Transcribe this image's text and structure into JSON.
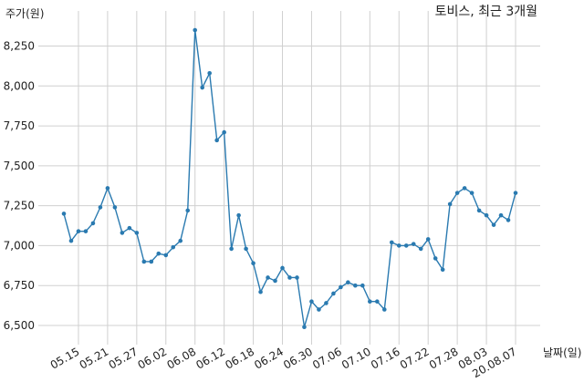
{
  "chart_data": {
    "type": "line",
    "title": "토비스, 최근 3개월",
    "xlabel": "날짜(일)",
    "ylabel": "주가(원)",
    "ylim": [
      6380,
      8470
    ],
    "yticks": [
      6500,
      6750,
      7000,
      7250,
      7500,
      7750,
      8000,
      8250
    ],
    "ytick_labels": [
      "6,500",
      "6,750",
      "7,000",
      "7,250",
      "7,500",
      "7,750",
      "8,000",
      "8,250"
    ],
    "xtick_labels": [
      "05.15",
      "05.21",
      "05.27",
      "06.02",
      "06.08",
      "06.12",
      "06.18",
      "06.24",
      "06.30",
      "07.06",
      "07.10",
      "07.16",
      "07.22",
      "07.28",
      "08.03",
      "20.08.07"
    ],
    "xtick_positions": [
      3,
      7,
      11,
      15,
      19,
      23,
      27,
      31,
      35,
      39,
      43,
      47,
      51,
      55,
      59,
      63
    ],
    "grid": true,
    "series": [
      {
        "values": [
          7200,
          7030,
          7090,
          7090,
          7140,
          7240,
          7360,
          7240,
          7080,
          7110,
          7080,
          6900,
          6900,
          6950,
          6940,
          6990,
          7030,
          7220,
          8350,
          7990,
          8080,
          7660,
          7710,
          6980,
          7190,
          6980,
          6890,
          6710,
          6800,
          6780,
          6860,
          6800,
          6800,
          6490,
          6650,
          6600,
          6640,
          6700,
          6740,
          6770,
          6750,
          6750,
          6650,
          6650,
          6600,
          7020,
          7000,
          7000,
          7010,
          6980,
          7040,
          6920,
          6850,
          7260,
          7330,
          7360,
          7330,
          7220,
          7190,
          7130,
          7190,
          7160,
          7330
        ]
      }
    ]
  }
}
